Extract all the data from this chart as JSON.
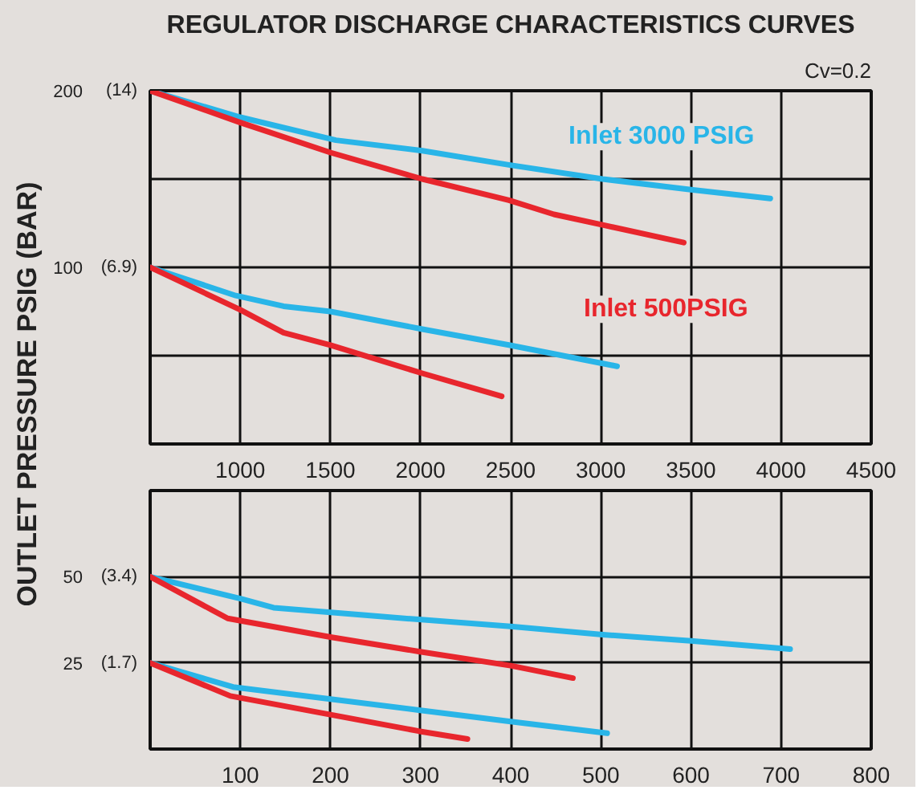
{
  "chart_data": [
    {
      "type": "line",
      "title": "REGULATOR DISCHARGE CHARACTERISTICS CURVES",
      "ylabel": "OUTLET PRESSURE PSIG (BAR)",
      "annotations": [
        "Cv=0.2"
      ],
      "xlim": [
        500,
        4500
      ],
      "xticks": [
        1000,
        1500,
        2000,
        2500,
        3000,
        3500,
        4000,
        4500
      ],
      "ylim": [
        0,
        200
      ],
      "yticks": [
        {
          "value": 50,
          "label": null
        },
        100,
        {
          "value": 150,
          "label": null
        },
        200
      ],
      "y2lim": [
        0,
        13.79
      ],
      "y2ticks": [
        {
          "value": 6.89,
          "label": "(6.9)"
        },
        {
          "value": 13.79,
          "label": "(14)"
        }
      ],
      "grid": true,
      "series": [
        {
          "name": "Inlet 3000 PSIG",
          "color": "#29b5e8",
          "x": [
            500,
            1000,
            1530,
            2010,
            2490,
            3010,
            3500,
            3940
          ],
          "values": [
            200,
            185,
            172,
            166,
            158,
            150,
            144,
            139
          ]
        },
        {
          "name": "Inlet 500PSIG",
          "color": "#e8262d",
          "x": [
            500,
            1000,
            1500,
            2010,
            2490,
            2740,
            3010,
            3460
          ],
          "values": [
            200,
            182,
            165,
            150,
            138,
            130,
            124,
            114
          ]
        },
        {
          "color": "#29b5e8",
          "x": [
            500,
            975,
            1240,
            1500,
            2010,
            2490,
            3090
          ],
          "values": [
            100,
            84,
            78,
            75,
            65,
            56,
            44
          ]
        },
        {
          "color": "#e8262d",
          "x": [
            500,
            1000,
            1240,
            1500,
            2010,
            2450
          ],
          "values": [
            100,
            76,
            63,
            56,
            40,
            27
          ]
        }
      ]
    },
    {
      "type": "line",
      "xlim": [
        0,
        800
      ],
      "xticks": [
        100,
        200,
        300,
        400,
        500,
        600,
        700,
        800
      ],
      "ylim": [
        0,
        75
      ],
      "yticks": [
        25,
        50
      ],
      "y2lim": [
        0,
        5.171
      ],
      "y2ticks": [
        {
          "value": 1.72,
          "label": "(1.7)"
        },
        {
          "value": 3.45,
          "label": "(3.4)"
        }
      ],
      "grid": true,
      "series": [
        {
          "color": "#29b5e8",
          "x": [
            0,
            101,
            137,
            203,
            298,
            400,
            502,
            600,
            710
          ],
          "values": [
            50,
            43.6,
            41,
            39.6,
            37.6,
            35.6,
            33.2,
            31.4,
            29
          ]
        },
        {
          "color": "#e8262d",
          "x": [
            0,
            86,
            200,
            298,
            400,
            469
          ],
          "values": [
            50,
            37.9,
            32.5,
            28.3,
            24.2,
            20.6
          ]
        },
        {
          "color": "#29b5e8",
          "x": [
            0,
            92,
            200,
            298,
            400,
            507
          ],
          "values": [
            25,
            18,
            14.5,
            11.3,
            8,
            4.6
          ]
        },
        {
          "color": "#e8262d",
          "x": [
            0,
            89,
            200,
            298,
            352
          ],
          "values": [
            25,
            15.4,
            10,
            5.2,
            2.9
          ]
        }
      ]
    }
  ]
}
